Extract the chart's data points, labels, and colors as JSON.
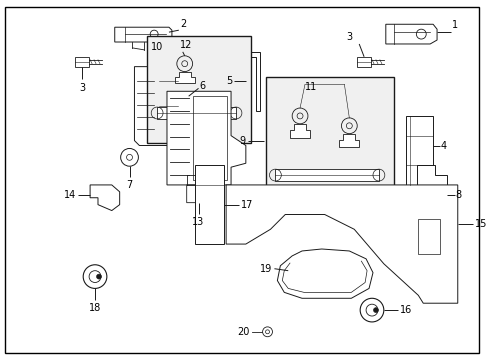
{
  "background_color": "#ffffff",
  "border_color": "#000000",
  "line_color": "#1a1a1a",
  "text_color": "#000000",
  "fig_width": 4.89,
  "fig_height": 3.6,
  "dpi": 100,
  "fs": 7.0,
  "lw": 0.7,
  "blw": 1.0
}
